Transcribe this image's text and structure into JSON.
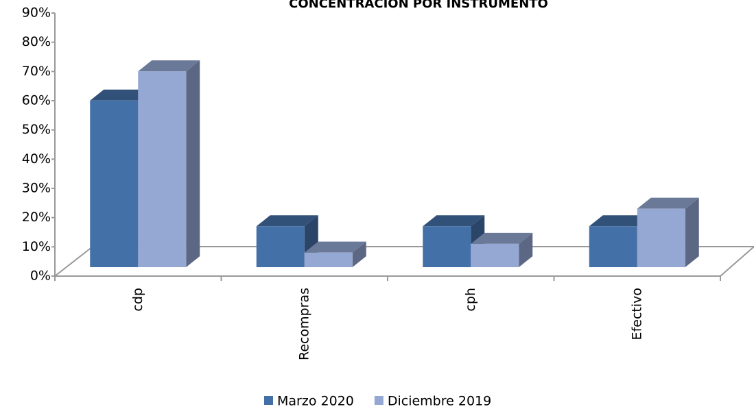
{
  "chart_data": {
    "type": "bar3d",
    "title": "CONCENTRACION POR INSTRUMENTO",
    "categories": [
      "cdp",
      "Recompras",
      "cph",
      "Efectivo"
    ],
    "series": [
      {
        "name": "Marzo 2020",
        "color": "#4470a8",
        "values": [
          57,
          14,
          14,
          14
        ]
      },
      {
        "name": "Diciembre 2019",
        "color": "#95a8d3",
        "values": [
          67,
          5,
          8,
          20
        ]
      }
    ],
    "ylim": [
      0,
      90
    ],
    "yticks": [
      {
        "value": 0,
        "label": "0%"
      },
      {
        "value": 10,
        "label": "10%"
      },
      {
        "value": 20,
        "label": "20%"
      },
      {
        "value": 30,
        "label": "30%"
      },
      {
        "value": 40,
        "label": "40%"
      },
      {
        "value": 50,
        "label": "50%"
      },
      {
        "value": 60,
        "label": "60%"
      },
      {
        "value": 70,
        "label": "70%"
      },
      {
        "value": 80,
        "label": "80%"
      },
      {
        "value": 90,
        "label": "90%"
      }
    ],
    "grid": false,
    "legend": "bottom"
  }
}
